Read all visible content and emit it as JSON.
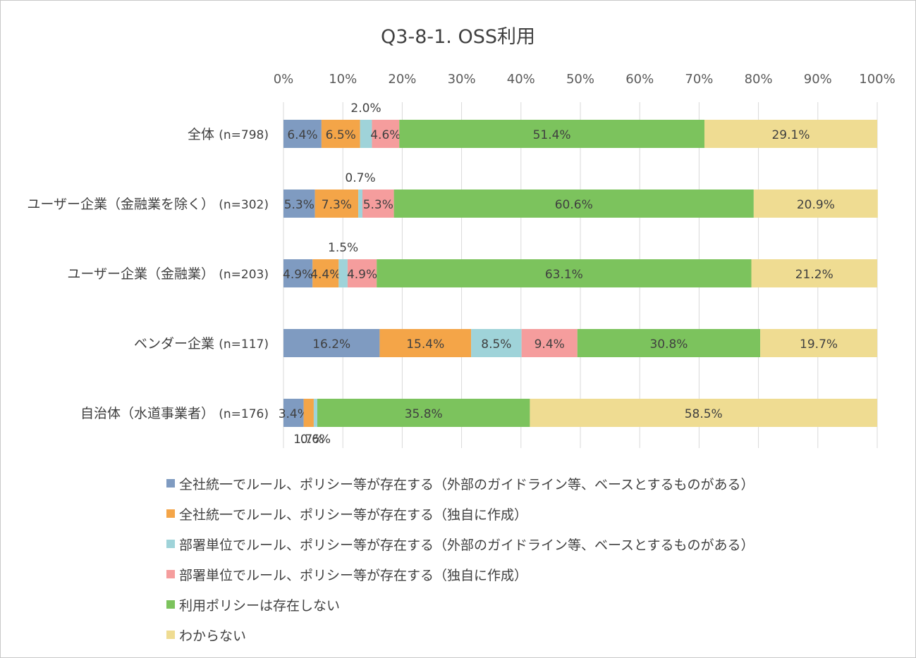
{
  "chart_data": {
    "type": "bar",
    "orientation": "horizontal",
    "stacked": true,
    "percent": true,
    "title": "Q3-8-1. OSS利用",
    "xlim": [
      0,
      100
    ],
    "x_ticks": [
      "0%",
      "10%",
      "20%",
      "30%",
      "40%",
      "50%",
      "60%",
      "70%",
      "80%",
      "90%",
      "100%"
    ],
    "grid": "vertical",
    "legend_position": "bottom",
    "categories": [
      {
        "name": "全体",
        "n": "(n=798)"
      },
      {
        "name": "ユーザー企業（金融業を除く）",
        "n": "(n=302)"
      },
      {
        "name": "ユーザー企業（金融業）",
        "n": "(n=203)"
      },
      {
        "name": "ベンダー企業",
        "n": "(n=117)"
      },
      {
        "name": "自治体（水道事業者）",
        "n": "(n=176)"
      }
    ],
    "series": [
      {
        "name": "全社統一でルール、ポリシー等が存在する（外部のガイドライン等、ベースとするものがある）",
        "color": "#7f9bc1",
        "values": [
          6.4,
          5.3,
          4.9,
          16.2,
          3.4
        ],
        "labels": [
          "6.4%",
          "5.3%",
          "4.9%",
          "16.2%",
          "3.4%"
        ]
      },
      {
        "name": "全社統一でルール、ポリシー等が存在する（独自に作成）",
        "color": "#f4a548",
        "values": [
          6.5,
          7.3,
          4.4,
          15.4,
          1.7
        ],
        "labels": [
          "6.5%",
          "7.3%",
          "4.4%",
          "15.4%",
          "1.7%"
        ]
      },
      {
        "name": "部署単位でルール、ポリシー等が存在する（外部のガイドライン等、ベースとするものがある）",
        "color": "#9fd3d9",
        "values": [
          2.0,
          0.7,
          1.5,
          8.5,
          0.6
        ],
        "labels": [
          "2.0%",
          "0.7%",
          "1.5%",
          "8.5%",
          "0.6%"
        ]
      },
      {
        "name": "部署単位でルール、ポリシー等が存在する（独自に作成）",
        "color": "#f59d9d",
        "values": [
          4.6,
          5.3,
          4.9,
          9.4,
          0.0
        ],
        "labels": [
          "4.6%",
          "5.3%",
          "4.9%",
          "9.4%",
          ""
        ]
      },
      {
        "name": "利用ポリシーは存在しない",
        "color": "#7cc35d",
        "values": [
          51.4,
          60.6,
          63.1,
          30.8,
          35.8
        ],
        "labels": [
          "51.4%",
          "60.6%",
          "63.1%",
          "30.8%",
          "35.8%"
        ]
      },
      {
        "name": "わからない",
        "color": "#efdc92",
        "values": [
          29.1,
          20.9,
          21.2,
          19.7,
          58.5
        ],
        "labels": [
          "29.1%",
          "20.9%",
          "21.2%",
          "19.7%",
          "58.5%"
        ]
      }
    ]
  }
}
